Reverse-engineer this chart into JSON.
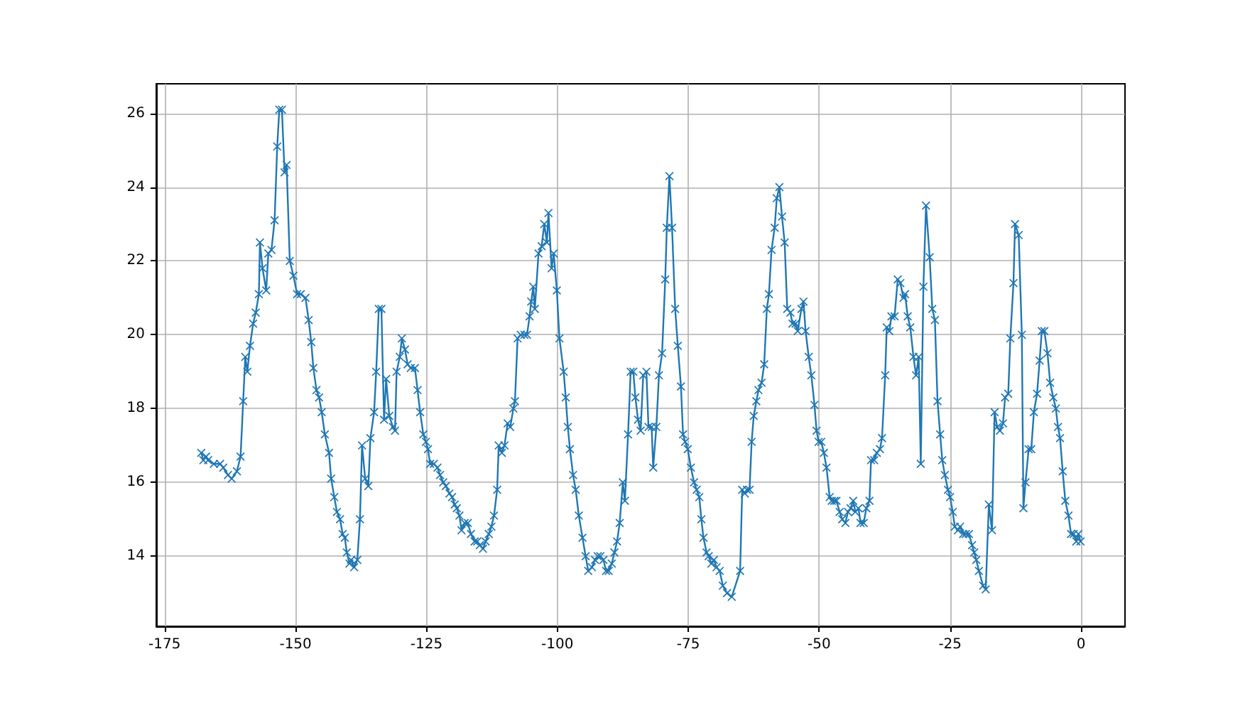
{
  "chart_data": {
    "type": "line",
    "marker": "cross",
    "line_style": "solid",
    "grid": true,
    "xlim": [
      -176.6,
      8.4
    ],
    "ylim": [
      12.1,
      26.8
    ],
    "xticks": [
      -175,
      -150,
      -125,
      -100,
      -75,
      -50,
      -25,
      0
    ],
    "yticks": [
      14,
      16,
      18,
      20,
      22,
      24,
      26
    ],
    "series": [
      {
        "color": "#1f77b4",
        "x": [
          -168.0,
          -167.6,
          -167.1,
          -166.7,
          -165.6,
          -164.4,
          -163.8,
          -162.9,
          -162.2,
          -161.2,
          -160.5,
          -160.0,
          -159.6,
          -159.2,
          -158.7,
          -158.1,
          -157.6,
          -157.0,
          -156.8,
          -156.3,
          -155.6,
          -155.2,
          -154.6,
          -154.0,
          -153.5,
          -153.1,
          -152.6,
          -152.1,
          -151.7,
          -151.1,
          -150.4,
          -149.7,
          -149.0,
          -148.1,
          -147.5,
          -147.0,
          -146.6,
          -146.0,
          -145.5,
          -145.0,
          -144.4,
          -143.6,
          -143.2,
          -142.6,
          -142.1,
          -141.5,
          -141.0,
          -140.6,
          -140.2,
          -139.7,
          -139.4,
          -138.8,
          -138.2,
          -137.7,
          -137.3,
          -136.7,
          -136.1,
          -135.7,
          -135.0,
          -134.6,
          -134.1,
          -133.6,
          -133.1,
          -132.7,
          -132.1,
          -131.4,
          -131.0,
          -130.7,
          -130.1,
          -129.7,
          -129.1,
          -128.6,
          -128.0,
          -127.2,
          -126.7,
          -126.2,
          -125.6,
          -125.1,
          -124.7,
          -124.3,
          -123.6,
          -122.9,
          -122.4,
          -121.8,
          -121.3,
          -120.6,
          -120.1,
          -119.6,
          -119.2,
          -118.7,
          -118.3,
          -117.7,
          -117.1,
          -116.5,
          -115.8,
          -115.3,
          -114.8,
          -114.2,
          -113.7,
          -113.1,
          -112.6,
          -112.1,
          -111.5,
          -111.2,
          -110.6,
          -110.1,
          -109.5,
          -109.0,
          -108.4,
          -108.1,
          -107.6,
          -107.0,
          -106.3,
          -105.8,
          -105.3,
          -105.0,
          -104.6,
          -104.3,
          -103.6,
          -103.0,
          -102.5,
          -102.0,
          -101.7,
          -101.1,
          -100.7,
          -100.1,
          -99.6,
          -98.8,
          -98.4,
          -98.0,
          -97.6,
          -97.0,
          -96.5,
          -95.9,
          -95.2,
          -94.6,
          -94.1,
          -93.4,
          -92.8,
          -92.3,
          -91.8,
          -91.2,
          -90.7,
          -90.2,
          -89.6,
          -89.1,
          -88.6,
          -88.1,
          -87.5,
          -87.1,
          -86.5,
          -86.0,
          -85.5,
          -85.1,
          -84.6,
          -84.1,
          -83.6,
          -83.0,
          -82.6,
          -82.0,
          -81.7,
          -81.1,
          -80.6,
          -80.0,
          -79.4,
          -79.1,
          -78.6,
          -78.1,
          -77.5,
          -77.0,
          -76.4,
          -76.0,
          -75.6,
          -75.1,
          -74.5,
          -73.9,
          -73.4,
          -72.9,
          -72.5,
          -72.1,
          -71.5,
          -71.1,
          -70.6,
          -70.1,
          -69.6,
          -69.0,
          -68.4,
          -67.6,
          -66.7,
          -65.1,
          -64.7,
          -64.2,
          -63.8,
          -63.3,
          -62.9,
          -62.5,
          -62.0,
          -61.6,
          -61.0,
          -60.5,
          -60.0,
          -59.6,
          -59.1,
          -58.5,
          -58.1,
          -57.6,
          -57.1,
          -56.6,
          -56.1,
          -55.5,
          -55.1,
          -54.5,
          -54.1,
          -53.4,
          -53.0,
          -52.6,
          -52.0,
          -51.5,
          -50.9,
          -50.5,
          -50.1,
          -49.6,
          -49.1,
          -48.6,
          -48.0,
          -47.6,
          -47.1,
          -46.7,
          -46.1,
          -45.6,
          -45.0,
          -44.5,
          -44.0,
          -43.5,
          -43.1,
          -42.5,
          -42.1,
          -41.5,
          -41.0,
          -40.4,
          -40.1,
          -39.5,
          -39.0,
          -38.4,
          -38.0,
          -37.4,
          -37.1,
          -36.6,
          -36.2,
          -35.6,
          -35.0,
          -34.5,
          -33.9,
          -33.6,
          -33.1,
          -32.6,
          -32.0,
          -31.5,
          -31.0,
          -30.6,
          -30.1,
          -29.6,
          -28.9,
          -28.4,
          -27.9,
          -27.4,
          -26.9,
          -26.5,
          -26.0,
          -25.4,
          -25.0,
          -24.5,
          -24.1,
          -23.5,
          -23.1,
          -22.5,
          -22.0,
          -21.4,
          -20.8,
          -20.4,
          -20.0,
          -19.5,
          -18.7,
          -18.2,
          -17.6,
          -17.0,
          -16.5,
          -16.0,
          -15.5,
          -14.9,
          -14.5,
          -13.9,
          -13.5,
          -12.9,
          -12.6,
          -11.9,
          -11.3,
          -11.0,
          -10.6,
          -10.0,
          -9.5,
          -9.0,
          -8.4,
          -7.9,
          -7.5,
          -7.0,
          -6.4,
          -5.9,
          -5.3,
          -4.8,
          -4.4,
          -4.0,
          -3.5,
          -3.0,
          -2.4,
          -1.9,
          -1.4,
          -0.9,
          -0.5,
          -0.1
        ],
        "values": [
          16.8,
          16.6,
          16.7,
          16.6,
          16.5,
          16.5,
          16.4,
          16.2,
          16.1,
          16.3,
          16.7,
          18.2,
          19.4,
          19.0,
          19.7,
          20.3,
          20.6,
          21.1,
          22.5,
          21.8,
          21.2,
          22.2,
          22.3,
          23.1,
          25.1,
          26.1,
          26.1,
          24.4,
          24.6,
          22.0,
          21.6,
          21.1,
          21.1,
          21.0,
          20.4,
          19.8,
          19.1,
          18.5,
          18.3,
          17.9,
          17.3,
          16.8,
          16.1,
          15.6,
          15.2,
          15.0,
          14.6,
          14.5,
          14.1,
          13.8,
          13.9,
          13.7,
          13.9,
          15.0,
          17.0,
          16.1,
          15.9,
          17.2,
          17.9,
          19.0,
          20.7,
          20.7,
          17.7,
          18.8,
          17.8,
          17.5,
          17.4,
          19.0,
          19.4,
          19.9,
          19.6,
          19.2,
          19.1,
          19.1,
          18.5,
          17.9,
          17.3,
          17.1,
          16.9,
          16.5,
          16.5,
          16.4,
          16.2,
          16.0,
          15.9,
          15.7,
          15.6,
          15.4,
          15.3,
          15.1,
          14.7,
          14.9,
          14.9,
          14.6,
          14.4,
          14.4,
          14.3,
          14.2,
          14.4,
          14.6,
          14.8,
          15.1,
          15.8,
          17.0,
          16.8,
          17.0,
          17.6,
          17.5,
          18.0,
          18.2,
          19.9,
          20.0,
          20.0,
          20.0,
          20.5,
          20.9,
          21.3,
          20.7,
          22.2,
          22.4,
          23.0,
          22.5,
          23.3,
          21.8,
          22.2,
          21.2,
          19.9,
          19.0,
          18.3,
          17.5,
          16.9,
          16.2,
          15.8,
          15.1,
          14.5,
          14.0,
          13.6,
          13.7,
          13.9,
          14.0,
          14.0,
          13.9,
          13.6,
          13.6,
          13.8,
          14.1,
          14.4,
          14.9,
          16.0,
          15.5,
          17.3,
          19.0,
          19.0,
          18.3,
          17.7,
          17.4,
          18.9,
          19.0,
          17.5,
          17.5,
          16.4,
          17.5,
          18.9,
          19.5,
          21.5,
          22.9,
          24.3,
          22.9,
          20.7,
          19.7,
          18.6,
          17.3,
          17.1,
          16.9,
          16.4,
          16.0,
          15.8,
          15.6,
          15.0,
          14.5,
          14.1,
          14.0,
          13.8,
          13.9,
          13.7,
          13.6,
          13.2,
          13.0,
          12.9,
          13.6,
          15.8,
          15.7,
          15.8,
          15.8,
          17.1,
          17.8,
          18.2,
          18.5,
          18.7,
          19.2,
          20.7,
          21.1,
          22.3,
          22.9,
          23.7,
          24.0,
          23.2,
          22.5,
          20.7,
          20.6,
          20.3,
          20.3,
          20.1,
          20.7,
          20.9,
          20.1,
          19.4,
          18.9,
          18.1,
          17.4,
          17.1,
          17.1,
          16.8,
          16.4,
          15.6,
          15.5,
          15.5,
          15.5,
          15.2,
          15.0,
          14.9,
          15.2,
          15.3,
          15.5,
          15.2,
          15.3,
          14.9,
          14.9,
          15.3,
          15.5,
          16.6,
          16.6,
          16.8,
          16.9,
          17.2,
          18.9,
          20.2,
          20.1,
          20.5,
          20.5,
          21.5,
          21.4,
          21.0,
          21.1,
          20.5,
          20.2,
          19.4,
          18.9,
          19.4,
          16.5,
          21.3,
          23.5,
          22.1,
          20.7,
          20.4,
          18.2,
          17.3,
          16.6,
          16.2,
          15.8,
          15.6,
          15.2,
          14.8,
          14.7,
          14.8,
          14.6,
          14.6,
          14.6,
          14.3,
          14.1,
          13.9,
          13.6,
          13.2,
          13.1,
          15.4,
          14.7,
          17.9,
          17.5,
          17.4,
          17.6,
          18.3,
          18.4,
          19.9,
          21.4,
          23.0,
          22.7,
          20.0,
          15.3,
          16.0,
          16.9,
          16.9,
          17.9,
          18.4,
          19.3,
          20.1,
          20.1,
          19.5,
          18.7,
          18.3,
          18.0,
          17.5,
          17.2,
          16.3,
          15.5,
          15.1,
          14.6,
          14.6,
          14.4,
          14.6,
          14.4
        ]
      }
    ]
  }
}
